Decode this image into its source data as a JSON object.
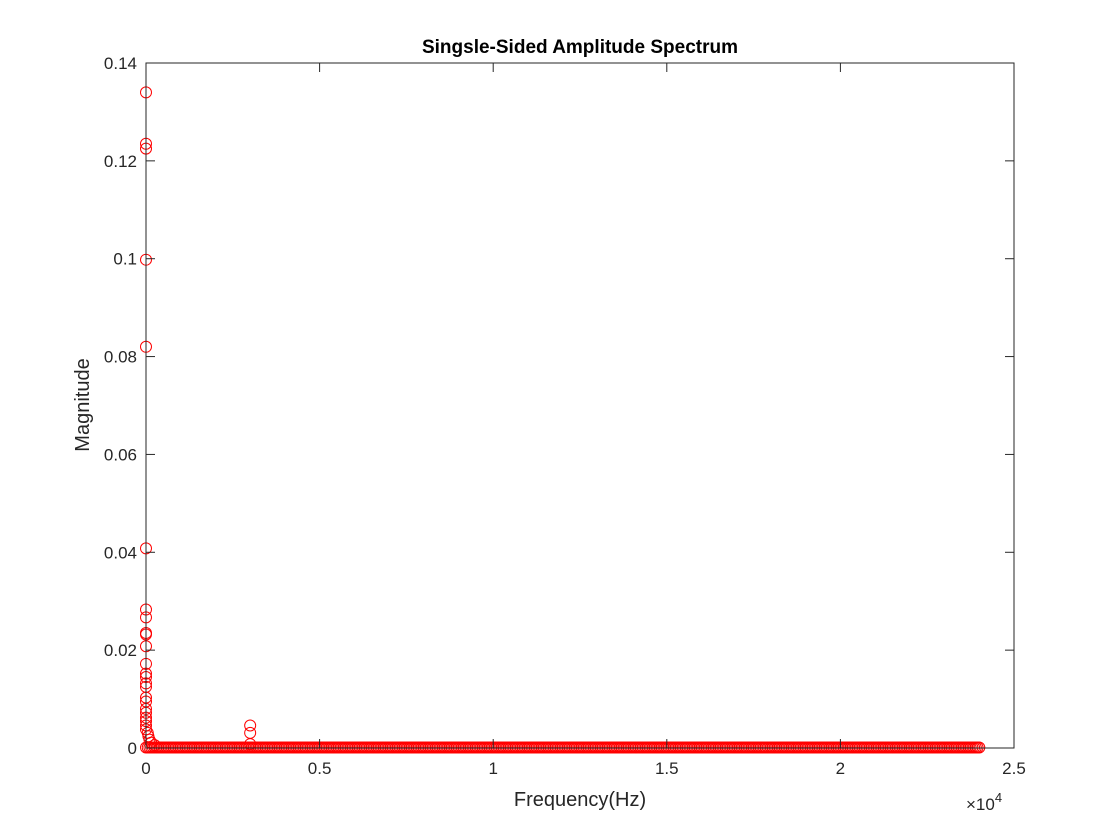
{
  "chart_data": {
    "type": "scatter",
    "title": "Singsle-Sided Amplitude Spectrum",
    "xlabel": "Frequency(Hz)",
    "ylabel": "Magnitude",
    "x_exponent_label": "×10",
    "x_exponent_power": "4",
    "xlim": [
      0,
      25000
    ],
    "ylim": [
      0,
      0.14
    ],
    "x_ticks": [
      0,
      5000,
      10000,
      15000,
      20000,
      25000
    ],
    "x_tick_labels": [
      "0",
      "0.5",
      "1",
      "1.5",
      "2",
      "2.5"
    ],
    "y_ticks": [
      0,
      0.02,
      0.04,
      0.06,
      0.08,
      0.1,
      0.12,
      0.14
    ],
    "y_tick_labels": [
      "0",
      "0.02",
      "0.04",
      "0.06",
      "0.08",
      "0.1",
      "0.12",
      "0.14"
    ],
    "grid": false,
    "marker": "circle-open",
    "color": "#ff0000",
    "peak_points": [
      {
        "x": 0,
        "y": 0.134
      },
      {
        "x": 0,
        "y": 0.1235
      },
      {
        "x": 0,
        "y": 0.1225
      },
      {
        "x": 0,
        "y": 0.0998
      },
      {
        "x": 0,
        "y": 0.082
      },
      {
        "x": 0,
        "y": 0.0408
      },
      {
        "x": 0,
        "y": 0.0283
      },
      {
        "x": 0,
        "y": 0.0267
      },
      {
        "x": 0,
        "y": 0.0235
      },
      {
        "x": 0,
        "y": 0.0232
      },
      {
        "x": 0,
        "y": 0.0208
      },
      {
        "x": 0,
        "y": 0.0172
      },
      {
        "x": 0,
        "y": 0.0152
      },
      {
        "x": 0,
        "y": 0.0145
      },
      {
        "x": 0,
        "y": 0.0132
      },
      {
        "x": 0,
        "y": 0.0125
      },
      {
        "x": 0,
        "y": 0.0103
      },
      {
        "x": 0,
        "y": 0.0095
      },
      {
        "x": 0,
        "y": 0.008
      },
      {
        "x": 0,
        "y": 0.0072
      },
      {
        "x": 0,
        "y": 0.0062
      },
      {
        "x": 0,
        "y": 0.0055
      },
      {
        "x": 0,
        "y": 0.0046
      },
      {
        "x": 0,
        "y": 0.0038
      },
      {
        "x": 50,
        "y": 0.0031
      },
      {
        "x": 70,
        "y": 0.0024
      },
      {
        "x": 100,
        "y": 0.0017
      },
      {
        "x": 150,
        "y": 0.0011
      },
      {
        "x": 250,
        "y": 0.0006
      },
      {
        "x": 3000,
        "y": 0.0046
      },
      {
        "x": 3000,
        "y": 0.0031
      },
      {
        "x": 3000,
        "y": 0.0008
      }
    ],
    "noise_floor": {
      "x_start": 0,
      "x_end": 24000,
      "y": 0.0001,
      "approx_spacing_hz": 50
    }
  }
}
